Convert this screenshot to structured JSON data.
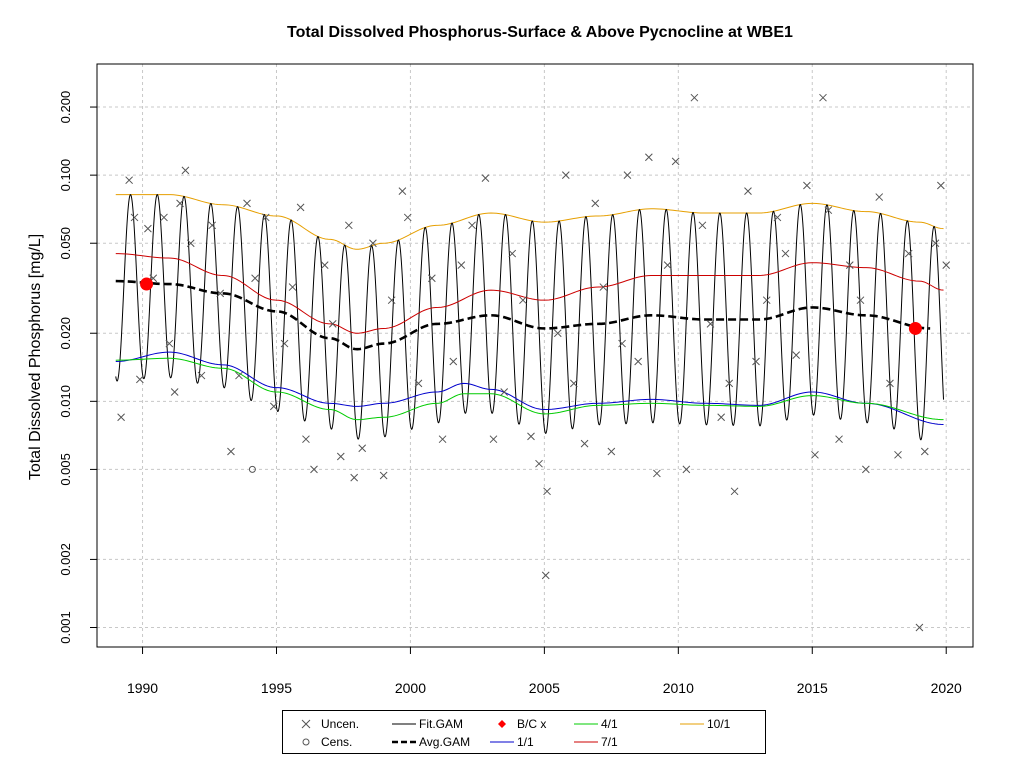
{
  "chart_data": {
    "type": "line",
    "title": "Total Dissolved Phosphorus-Surface & Above Pycnocline at WBE1",
    "xlabel": "",
    "ylabel": "Total Dissolved Phosphorus [mg/L]",
    "x_scale": "linear",
    "y_scale": "log",
    "xlim": [
      1988.3,
      2021.0
    ],
    "ylim": [
      0.00082,
      0.31
    ],
    "x_ticks": [
      "1990",
      "1995",
      "2000",
      "2005",
      "2010",
      "2015",
      "2020"
    ],
    "y_ticks": [
      "0.001",
      "0.002",
      "0.005",
      "0.010",
      "0.020",
      "0.050",
      "0.100",
      "0.200"
    ],
    "grid": true,
    "legend_position": "bottom",
    "legend": [
      {
        "label": "Uncen.",
        "symbol": "x",
        "color": "#555555"
      },
      {
        "label": "Cens.",
        "symbol": "circle-open",
        "color": "#555555"
      },
      {
        "label": "Fit.GAM",
        "symbol": "line",
        "color": "#000000"
      },
      {
        "label": "Avg.GAM",
        "symbol": "dashed",
        "color": "#000000"
      },
      {
        "label": "B/C x",
        "symbol": "diamond",
        "color": "#ff0000"
      },
      {
        "label": "1/1",
        "symbol": "line",
        "color": "#0000cc"
      },
      {
        "label": "4/1",
        "symbol": "line",
        "color": "#00cc00"
      },
      {
        "label": "7/1",
        "symbol": "line",
        "color": "#cc0000"
      },
      {
        "label": "10/1",
        "symbol": "line",
        "color": "#e69f00"
      }
    ],
    "series": [
      {
        "name": "10/1",
        "color": "#e69f00",
        "x": [
          1989,
          1991,
          1993,
          1995,
          1997,
          1998,
          1999,
          2001,
          2003,
          2005,
          2007,
          2009,
          2011,
          2013,
          2015,
          2017,
          2019,
          2019.9
        ],
        "y": [
          0.082,
          0.082,
          0.074,
          0.066,
          0.052,
          0.047,
          0.05,
          0.06,
          0.068,
          0.062,
          0.066,
          0.071,
          0.068,
          0.068,
          0.075,
          0.069,
          0.062,
          0.058
        ]
      },
      {
        "name": "7/1",
        "color": "#cc0000",
        "x": [
          1989,
          1991,
          1993,
          1995,
          1997,
          1998,
          1999,
          2001,
          2003,
          2005,
          2007,
          2009,
          2011,
          2013,
          2015,
          2017,
          2019,
          2019.9
        ],
        "y": [
          0.045,
          0.043,
          0.036,
          0.028,
          0.022,
          0.02,
          0.021,
          0.026,
          0.031,
          0.028,
          0.032,
          0.036,
          0.036,
          0.036,
          0.041,
          0.039,
          0.034,
          0.031
        ]
      },
      {
        "name": "Avg.GAM",
        "color": "#000000",
        "x": [
          1989,
          1991,
          1993,
          1995,
          1997,
          1998,
          1999,
          2001,
          2003,
          2005,
          2007,
          2009,
          2011,
          2013,
          2015,
          2017,
          2019.4
        ],
        "y": [
          0.034,
          0.033,
          0.03,
          0.025,
          0.019,
          0.017,
          0.018,
          0.022,
          0.024,
          0.021,
          0.022,
          0.024,
          0.023,
          0.023,
          0.026,
          0.024,
          0.021
        ]
      },
      {
        "name": "1/1",
        "color": "#0000cc",
        "x": [
          1989,
          1991,
          1993,
          1995,
          1997,
          1998,
          1999,
          2001,
          2002,
          2003,
          2005,
          2007,
          2009,
          2011,
          2013,
          2015,
          2017,
          2019.9
        ],
        "y": [
          0.015,
          0.0165,
          0.0145,
          0.0115,
          0.0098,
          0.0095,
          0.0098,
          0.011,
          0.012,
          0.0113,
          0.0092,
          0.0098,
          0.0102,
          0.0098,
          0.0096,
          0.011,
          0.0098,
          0.0079
        ]
      },
      {
        "name": "4/1",
        "color": "#00cc00",
        "x": [
          1989,
          1991,
          1993,
          1995,
          1997,
          1998,
          1999,
          2001,
          2002,
          2003,
          2005,
          2007,
          2009,
          2011,
          2013,
          2015,
          2017,
          2019.9
        ],
        "y": [
          0.0152,
          0.0155,
          0.014,
          0.011,
          0.0092,
          0.0083,
          0.0085,
          0.0098,
          0.0108,
          0.0108,
          0.0088,
          0.0096,
          0.0098,
          0.0096,
          0.0095,
          0.0106,
          0.0098,
          0.0083
        ]
      }
    ],
    "fit_gam": {
      "name": "Fit.GAM",
      "x_start": 1989.0,
      "x_end": 2019.9,
      "period_years": 1.0,
      "peak_phase": 0.55
    },
    "bc_points": [
      {
        "x": 1990.15,
        "y": 0.033
      },
      {
        "x": 2018.85,
        "y": 0.021
      }
    ],
    "uncensored": [
      [
        1989.2,
        0.0085
      ],
      [
        1989.5,
        0.095
      ],
      [
        1989.7,
        0.065
      ],
      [
        1989.9,
        0.0125
      ],
      [
        1990.2,
        0.058
      ],
      [
        1990.4,
        0.035
      ],
      [
        1990.8,
        0.065
      ],
      [
        1991.0,
        0.018
      ],
      [
        1991.2,
        0.011
      ],
      [
        1991.4,
        0.075
      ],
      [
        1991.6,
        0.105
      ],
      [
        1991.8,
        0.05
      ],
      [
        1992.2,
        0.013
      ],
      [
        1992.6,
        0.06
      ],
      [
        1992.9,
        0.03
      ],
      [
        1993.3,
        0.006
      ],
      [
        1993.6,
        0.013
      ],
      [
        1993.9,
        0.075
      ],
      [
        1994.2,
        0.035
      ],
      [
        1994.6,
        0.065
      ],
      [
        1994.9,
        0.0095
      ],
      [
        1995.3,
        0.018
      ],
      [
        1995.6,
        0.032
      ],
      [
        1995.9,
        0.072
      ],
      [
        1996.1,
        0.0068
      ],
      [
        1996.4,
        0.005
      ],
      [
        1996.8,
        0.04
      ],
      [
        1997.1,
        0.022
      ],
      [
        1997.4,
        0.0057
      ],
      [
        1997.7,
        0.06
      ],
      [
        1997.9,
        0.0046
      ],
      [
        1998.2,
        0.0062
      ],
      [
        1998.6,
        0.05
      ],
      [
        1999.0,
        0.0047
      ],
      [
        1999.3,
        0.028
      ],
      [
        1999.7,
        0.085
      ],
      [
        1999.9,
        0.065
      ],
      [
        2000.3,
        0.012
      ],
      [
        2000.8,
        0.035
      ],
      [
        2001.2,
        0.0068
      ],
      [
        2001.6,
        0.015
      ],
      [
        2001.9,
        0.04
      ],
      [
        2002.3,
        0.06
      ],
      [
        2002.8,
        0.097
      ],
      [
        2003.1,
        0.0068
      ],
      [
        2003.5,
        0.011
      ],
      [
        2003.8,
        0.045
      ],
      [
        2004.2,
        0.028
      ],
      [
        2004.5,
        0.007
      ],
      [
        2004.8,
        0.0053
      ],
      [
        2005.05,
        0.0017
      ],
      [
        2005.1,
        0.004
      ],
      [
        2005.5,
        0.02
      ],
      [
        2005.8,
        0.1
      ],
      [
        2006.1,
        0.012
      ],
      [
        2006.5,
        0.0065
      ],
      [
        2006.9,
        0.075
      ],
      [
        2007.2,
        0.032
      ],
      [
        2007.5,
        0.006
      ],
      [
        2007.9,
        0.018
      ],
      [
        2008.1,
        0.1
      ],
      [
        2008.5,
        0.015
      ],
      [
        2008.9,
        0.12
      ],
      [
        2009.2,
        0.0048
      ],
      [
        2009.6,
        0.04
      ],
      [
        2009.9,
        0.115
      ],
      [
        2010.3,
        0.005
      ],
      [
        2010.6,
        0.22
      ],
      [
        2010.9,
        0.06
      ],
      [
        2011.2,
        0.022
      ],
      [
        2011.6,
        0.0085
      ],
      [
        2011.9,
        0.012
      ],
      [
        2012.1,
        0.004
      ],
      [
        2012.6,
        0.085
      ],
      [
        2012.9,
        0.015
      ],
      [
        2013.3,
        0.028
      ],
      [
        2013.7,
        0.065
      ],
      [
        2014.0,
        0.045
      ],
      [
        2014.4,
        0.016
      ],
      [
        2014.8,
        0.09
      ],
      [
        2015.1,
        0.0058
      ],
      [
        2015.4,
        0.22
      ],
      [
        2015.6,
        0.07
      ],
      [
        2016.0,
        0.0068
      ],
      [
        2016.4,
        0.04
      ],
      [
        2016.8,
        0.028
      ],
      [
        2017.0,
        0.005
      ],
      [
        2017.5,
        0.08
      ],
      [
        2017.9,
        0.012
      ],
      [
        2018.2,
        0.0058
      ],
      [
        2018.6,
        0.045
      ],
      [
        2019.0,
        0.001
      ],
      [
        2019.2,
        0.006
      ],
      [
        2019.6,
        0.05
      ],
      [
        2019.8,
        0.09
      ],
      [
        2020.0,
        0.04
      ]
    ],
    "censored": [
      [
        1994.1,
        0.005
      ]
    ]
  }
}
